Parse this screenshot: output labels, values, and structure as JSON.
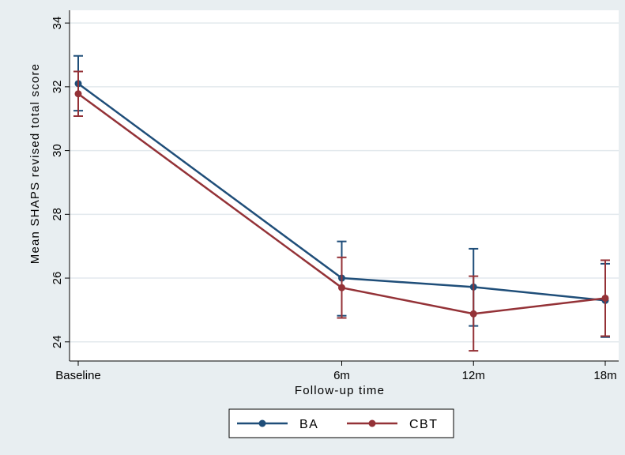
{
  "chart_data": {
    "type": "line",
    "title": "",
    "xlabel": "Follow-up time",
    "ylabel": "Mean SHAPS revised total score",
    "x": [
      0,
      6,
      9,
      12
    ],
    "categories": [
      "Baseline",
      "6m",
      "12m",
      "18m"
    ],
    "ylim": [
      23.4,
      34.4
    ],
    "yticks": [
      24,
      26,
      28,
      30,
      32,
      34
    ],
    "grid": true,
    "legend_position": "bottom",
    "series": [
      {
        "name": "BA",
        "color": "#1f4e79",
        "values": [
          32.1,
          26.0,
          25.72,
          25.3
        ],
        "ci_low": [
          31.25,
          24.82,
          24.5,
          24.15
        ],
        "ci_high": [
          32.97,
          27.15,
          26.92,
          26.45
        ]
      },
      {
        "name": "CBT",
        "color": "#943237",
        "values": [
          31.78,
          25.7,
          24.88,
          25.37
        ],
        "ci_low": [
          31.08,
          24.75,
          23.72,
          24.18
        ],
        "ci_high": [
          32.48,
          26.65,
          26.06,
          26.56
        ]
      }
    ]
  }
}
